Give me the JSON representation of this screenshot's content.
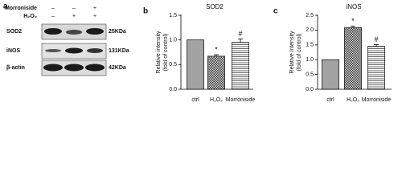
{
  "blot": {
    "panel_label": "a",
    "treatments": [
      {
        "label": "Morroniside",
        "signs": [
          "–",
          "–",
          "+"
        ]
      },
      {
        "label": "H₂O₂",
        "signs": [
          "–",
          "+",
          "+"
        ]
      }
    ],
    "bands": [
      {
        "name": "SOD2",
        "size": "25KDa"
      },
      {
        "name": "iNOS",
        "size": "131KDa"
      },
      {
        "name": "β-actin",
        "size": "42KDa"
      }
    ]
  },
  "chart_data": [
    {
      "type": "bar",
      "panel_label": "b",
      "title": "SOD2",
      "ylabel_lines": [
        "Relative intensity",
        "(fold of control)"
      ],
      "categories": [
        "ctrl",
        "H₂O₂",
        "Morroniside"
      ],
      "values": [
        1.0,
        0.67,
        0.95
      ],
      "errors": [
        0,
        0.03,
        0.07
      ],
      "annotations": [
        null,
        "*",
        "#"
      ],
      "bar_styles": [
        "solid",
        "checker",
        "stripes"
      ],
      "color": "#a3a3a3",
      "ylim": [
        0,
        1.5
      ],
      "yticks": [
        {
          "value": 0,
          "label": "0.0"
        },
        0.5,
        {
          "value": 1,
          "label": "1.0"
        },
        1.5
      ]
    },
    {
      "type": "bar",
      "panel_label": "c",
      "title": "iNOS",
      "ylabel_lines": [
        "Relative intensity",
        "(fold of control)"
      ],
      "categories": [
        "ctrl",
        "H₂O₂",
        "Morroniside"
      ],
      "values": [
        1.0,
        2.08,
        1.45
      ],
      "errors": [
        0,
        0.05,
        0.06
      ],
      "annotations": [
        null,
        "*",
        "#"
      ],
      "bar_styles": [
        "solid",
        "checker",
        "stripes"
      ],
      "color": "#a3a3a3",
      "ylim": [
        0,
        2.5
      ],
      "yticks": [
        {
          "value": 0,
          "label": "0.0"
        },
        0.5,
        {
          "value": 1,
          "label": "1.0"
        },
        1.5,
        {
          "value": 2,
          "label": "2.0"
        },
        2.5
      ]
    }
  ]
}
